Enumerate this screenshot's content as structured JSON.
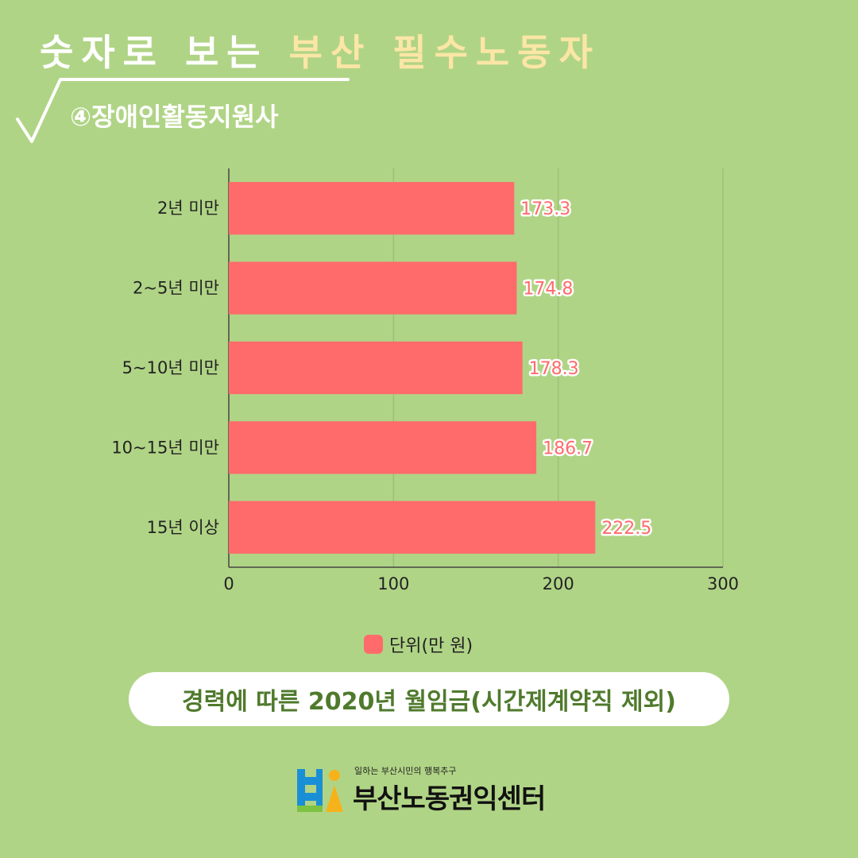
{
  "header": {
    "title_part1": "숫자로 보는 ",
    "title_highlight": "부산 필수노동자",
    "subtitle": "④장애인활동지원사"
  },
  "chart_data": {
    "type": "bar",
    "orientation": "horizontal",
    "categories": [
      "2년 미만",
      "2~5년 미만",
      "5~10년 미만",
      "10~15년 미만",
      "15년 이상"
    ],
    "series": [
      {
        "name": "단위(만 원)",
        "values": [
          173.3,
          174.8,
          178.3,
          186.7,
          222.5
        ],
        "color": "#ff6b6b"
      }
    ],
    "xlim": [
      0,
      300
    ],
    "xticks": [
      0,
      100,
      200,
      300
    ],
    "grid": true,
    "legend": "bottom",
    "data_labels": true
  },
  "caption": "경력에 따른 2020년 월임금(시간제계약직 제외)",
  "footer": {
    "tagline": "일하는 부산시민의 행복추구",
    "org_name": "부산노동권익센터"
  },
  "colors": {
    "background": "#b0d486",
    "bar": "#ff6b6b",
    "highlight": "#fbe6a6",
    "caption_text": "#4f7a2c"
  }
}
